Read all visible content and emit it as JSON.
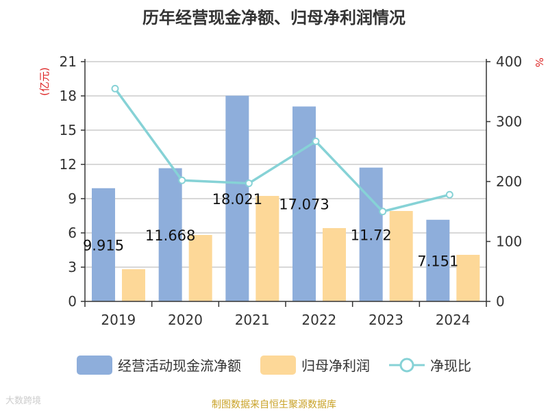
{
  "chart_data": {
    "type": "bar",
    "title": "历年经营现金净额、归母净利润情况",
    "categories": [
      "2019",
      "2020",
      "2021",
      "2022",
      "2023",
      "2024"
    ],
    "y_left": {
      "label": "(亿元)",
      "range": [
        0,
        21
      ],
      "ticks": [
        0,
        3,
        6,
        9,
        12,
        15,
        18,
        21
      ]
    },
    "y_right": {
      "label": "%",
      "range": [
        0,
        400
      ],
      "ticks": [
        0,
        100,
        200,
        300,
        400
      ]
    },
    "grid": true,
    "legend_position": "bottom",
    "series": [
      {
        "name": "经营活动现金流净额",
        "type": "bar",
        "axis": "left",
        "color": "#8eaedb",
        "values": [
          9.915,
          11.668,
          18.021,
          17.073,
          11.72,
          7.151
        ],
        "labels": [
          "9.915",
          "11.668",
          "18.021",
          "17.073",
          "11.72",
          "7.151"
        ]
      },
      {
        "name": "归母净利润",
        "type": "bar",
        "axis": "left",
        "color": "#fdd898",
        "values": [
          2.82,
          5.82,
          9.24,
          6.42,
          7.92,
          4.08
        ]
      },
      {
        "name": "净现比",
        "type": "line",
        "axis": "right",
        "color": "#86d2d6",
        "values": [
          355,
          202,
          197,
          267,
          150,
          178
        ]
      }
    ]
  },
  "source": "制图数据来自恒生聚源数据库",
  "watermark": "大数跨境"
}
